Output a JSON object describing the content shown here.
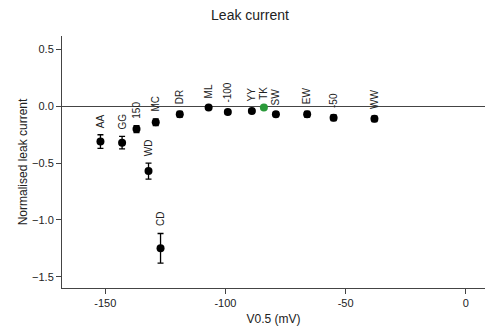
{
  "chart_data": {
    "type": "scatter",
    "title": "Leak current",
    "xlabel": "V0.5 (mV)",
    "ylabel": "Normalised leak current",
    "labels": [
      "AA",
      "GG",
      "150",
      "MC",
      "DR",
      "ML",
      "-100",
      "YY",
      "TK",
      "SW",
      "EW",
      "-50",
      "WW",
      "WD",
      "CD"
    ],
    "x": [
      -152,
      -143,
      -137,
      -129,
      -119,
      -107,
      -99,
      -89,
      -84,
      -79,
      -66,
      -55,
      -38,
      -132,
      -127
    ],
    "values": [
      -0.31,
      -0.32,
      -0.2,
      -0.14,
      -0.07,
      -0.01,
      -0.05,
      -0.04,
      -0.01,
      -0.07,
      -0.07,
      -0.1,
      -0.11,
      -0.57,
      -1.25
    ],
    "errors": [
      0.06,
      0.055,
      0.03,
      0.03,
      0.025,
      0.015,
      0.02,
      0.02,
      0.01,
      0.02,
      0.025,
      0.025,
      0.025,
      0.07,
      0.13
    ],
    "colors": [
      "#000000",
      "#000000",
      "#000000",
      "#000000",
      "#000000",
      "#000000",
      "#000000",
      "#000000",
      "#2a9a3a",
      "#000000",
      "#000000",
      "#000000",
      "#000000",
      "#000000",
      "#000000"
    ],
    "xlim": [
      -168,
      8
    ],
    "ylim": [
      -1.6,
      0.62
    ],
    "xticks": [
      -150,
      -100,
      -50,
      0
    ],
    "yticks": [
      {
        "value": -1.5,
        "label": "−1.5"
      },
      {
        "value": -1.0,
        "label": "−1.0"
      },
      {
        "value": -0.5,
        "label": "−0.5"
      },
      {
        "value": 0.0,
        "label": "0.0"
      },
      {
        "value": 0.5,
        "label": "0.5"
      }
    ],
    "grid": false
  }
}
